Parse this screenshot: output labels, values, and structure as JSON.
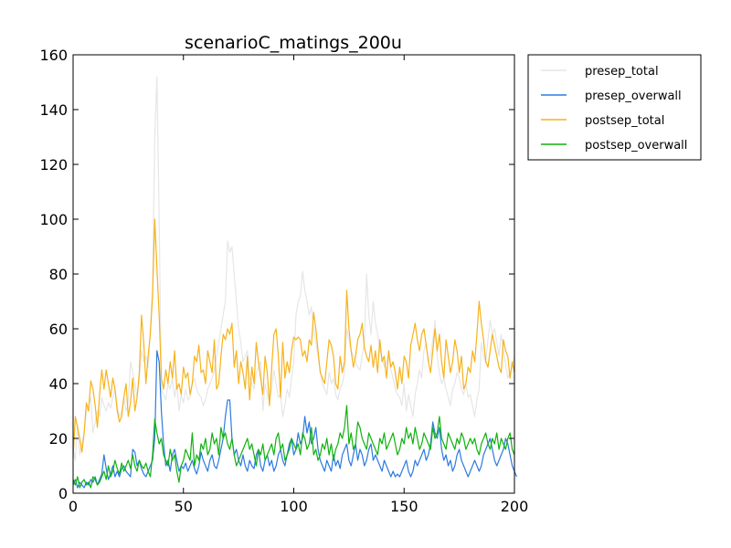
{
  "chart_data": {
    "type": "line",
    "title": "scenarioC_matings_200u",
    "xlabel": "",
    "ylabel": "",
    "xlim": [
      0,
      200
    ],
    "ylim": [
      0,
      160
    ],
    "xticks": [
      0,
      50,
      100,
      150,
      200
    ],
    "yticks": [
      0,
      20,
      40,
      60,
      80,
      100,
      120,
      140,
      160
    ],
    "grid": false,
    "legend_position": "outside-top-right",
    "series": [
      {
        "name": "presep_total",
        "color": "#e6e6e6",
        "values": [
          16,
          12,
          25,
          14,
          18,
          22,
          30,
          32,
          35,
          22,
          26,
          30,
          28,
          35,
          32,
          30,
          33,
          31,
          35,
          38,
          32,
          28,
          30,
          35,
          30,
          33,
          48,
          44,
          40,
          35,
          42,
          52,
          48,
          50,
          46,
          60,
          75,
          130,
          152,
          100,
          38,
          36,
          34,
          40,
          38,
          42,
          35,
          40,
          30,
          36,
          33,
          38,
          34,
          35,
          40,
          42,
          38,
          36,
          35,
          32,
          34,
          38,
          40,
          42,
          45,
          50,
          55,
          60,
          65,
          70,
          92,
          88,
          90,
          80,
          70,
          60,
          55,
          48,
          50,
          52,
          42,
          40,
          38,
          44,
          46,
          48,
          30,
          40,
          36,
          34,
          38,
          45,
          40,
          35,
          36,
          28,
          32,
          38,
          35,
          42,
          48,
          65,
          70,
          72,
          81,
          74,
          70,
          65,
          68,
          60,
          55,
          50,
          45,
          40,
          38,
          36,
          44,
          40,
          42,
          36,
          34,
          38,
          40,
          44,
          60,
          56,
          52,
          50,
          48,
          46,
          45,
          50,
          55,
          80,
          65,
          58,
          70,
          62,
          58,
          52,
          50,
          46,
          48,
          50,
          45,
          42,
          38,
          36,
          35,
          32,
          40,
          30,
          36,
          32,
          28,
          36,
          40,
          45,
          42,
          52,
          55,
          48,
          50,
          56,
          63,
          50,
          44,
          40,
          42,
          38,
          35,
          32,
          38,
          40,
          44,
          42,
          38,
          36,
          40,
          35,
          36,
          32,
          28,
          34,
          38,
          55,
          50,
          48,
          56,
          63,
          58,
          60,
          55,
          50,
          58,
          52,
          47,
          42,
          44,
          46,
          50
        ]
      },
      {
        "name": "presep_overwall",
        "color": "#2c7ae0",
        "values": [
          3,
          5,
          2,
          4,
          3,
          2,
          4,
          3,
          5,
          4,
          6,
          3,
          5,
          7,
          14,
          9,
          5,
          7,
          10,
          6,
          8,
          6,
          9,
          10,
          8,
          7,
          6,
          16,
          15,
          10,
          12,
          9,
          7,
          6,
          8,
          10,
          12,
          20,
          52,
          48,
          30,
          18,
          10,
          12,
          8,
          14,
          16,
          12,
          8,
          10,
          9,
          11,
          8,
          10,
          12,
          9,
          7,
          10,
          15,
          12,
          10,
          8,
          12,
          14,
          10,
          9,
          12,
          16,
          20,
          28,
          34,
          34,
          20,
          14,
          16,
          12,
          10,
          14,
          10,
          8,
          12,
          10,
          9,
          14,
          16,
          10,
          8,
          12,
          14,
          10,
          12,
          8,
          10,
          14,
          16,
          12,
          10,
          14,
          18,
          20,
          14,
          16,
          22,
          18,
          20,
          28,
          22,
          26,
          18,
          20,
          24,
          16,
          12,
          10,
          8,
          12,
          10,
          8,
          14,
          10,
          12,
          9,
          14,
          16,
          18,
          12,
          10,
          14,
          18,
          12,
          16,
          14,
          10,
          12,
          16,
          18,
          12,
          14,
          12,
          10,
          8,
          12,
          10,
          8,
          6,
          8,
          6,
          7,
          6,
          8,
          10,
          12,
          8,
          6,
          8,
          12,
          10,
          12,
          14,
          16,
          12,
          14,
          18,
          26,
          22,
          20,
          24,
          16,
          12,
          14,
          10,
          12,
          8,
          10,
          14,
          16,
          12,
          10,
          8,
          6,
          8,
          10,
          12,
          10,
          8,
          10,
          14,
          16,
          18,
          20,
          16,
          12,
          10,
          12,
          14,
          16,
          20,
          18,
          14,
          10,
          8,
          6
        ]
      },
      {
        "name": "postsep_total",
        "color": "#f7b21b",
        "values": [
          13,
          28,
          24,
          20,
          15,
          22,
          33,
          30,
          41,
          38,
          32,
          24,
          36,
          45,
          38,
          45,
          40,
          35,
          42,
          38,
          30,
          26,
          28,
          35,
          40,
          28,
          33,
          42,
          30,
          35,
          44,
          65,
          55,
          40,
          50,
          58,
          72,
          100,
          82,
          65,
          42,
          38,
          45,
          40,
          48,
          42,
          52,
          38,
          40,
          36,
          46,
          42,
          44,
          36,
          40,
          50,
          48,
          54,
          44,
          45,
          40,
          52,
          48,
          44,
          56,
          38,
          40,
          50,
          58,
          56,
          60,
          58,
          62,
          46,
          52,
          40,
          48,
          44,
          38,
          50,
          34,
          46,
          40,
          55,
          48,
          42,
          36,
          50,
          44,
          32,
          46,
          58,
          60,
          50,
          35,
          55,
          42,
          48,
          44,
          52,
          57,
          56,
          57,
          56,
          50,
          52,
          48,
          56,
          54,
          66,
          60,
          52,
          44,
          42,
          40,
          48,
          56,
          54,
          50,
          40,
          38,
          50,
          44,
          48,
          74,
          60,
          52,
          46,
          50,
          56,
          58,
          62,
          53,
          50,
          48,
          54,
          46,
          52,
          44,
          56,
          48,
          50,
          42,
          52,
          46,
          48,
          44,
          38,
          46,
          40,
          50,
          48,
          42,
          54,
          58,
          62,
          56,
          52,
          58,
          60,
          54,
          48,
          44,
          52,
          60,
          52,
          58,
          48,
          42,
          56,
          50,
          44,
          48,
          56,
          52,
          44,
          50,
          38,
          40,
          46,
          44,
          52,
          48,
          58,
          70,
          62,
          56,
          48,
          46,
          52,
          58,
          54,
          50,
          46,
          44,
          56,
          52,
          50,
          42,
          48,
          44
        ]
      },
      {
        "name": "postsep_overwall",
        "color": "#10b20e",
        "values": [
          5,
          3,
          6,
          2,
          4,
          5,
          3,
          4,
          2,
          6,
          5,
          3,
          4,
          6,
          8,
          5,
          10,
          6,
          8,
          12,
          9,
          7,
          11,
          8,
          10,
          12,
          9,
          14,
          10,
          8,
          12,
          10,
          9,
          11,
          8,
          6,
          14,
          27,
          22,
          18,
          20,
          14,
          12,
          10,
          16,
          12,
          14,
          8,
          4,
          10,
          12,
          16,
          14,
          12,
          22,
          10,
          14,
          12,
          18,
          16,
          20,
          14,
          16,
          22,
          18,
          20,
          14,
          24,
          20,
          22,
          18,
          16,
          20,
          14,
          10,
          12,
          14,
          16,
          18,
          20,
          16,
          18,
          14,
          10,
          16,
          14,
          18,
          12,
          14,
          16,
          18,
          14,
          20,
          22,
          16,
          18,
          12,
          14,
          16,
          20,
          18,
          16,
          18,
          14,
          22,
          20,
          16,
          18,
          24,
          14,
          16,
          12,
          14,
          18,
          16,
          20,
          14,
          18,
          12,
          16,
          18,
          22,
          20,
          24,
          32,
          18,
          22,
          16,
          18,
          26,
          24,
          20,
          18,
          16,
          22,
          20,
          18,
          16,
          14,
          20,
          18,
          22,
          16,
          18,
          20,
          22,
          18,
          14,
          16,
          20,
          18,
          24,
          20,
          22,
          18,
          24,
          20,
          16,
          18,
          22,
          20,
          18,
          16,
          24,
          20,
          22,
          28,
          20,
          18,
          16,
          22,
          20,
          18,
          16,
          20,
          18,
          22,
          20,
          16,
          18,
          20,
          18,
          20,
          16,
          14,
          18,
          20,
          22,
          18,
          16,
          20,
          18,
          22,
          16,
          20,
          18,
          16,
          20,
          22,
          16,
          14
        ]
      }
    ]
  }
}
